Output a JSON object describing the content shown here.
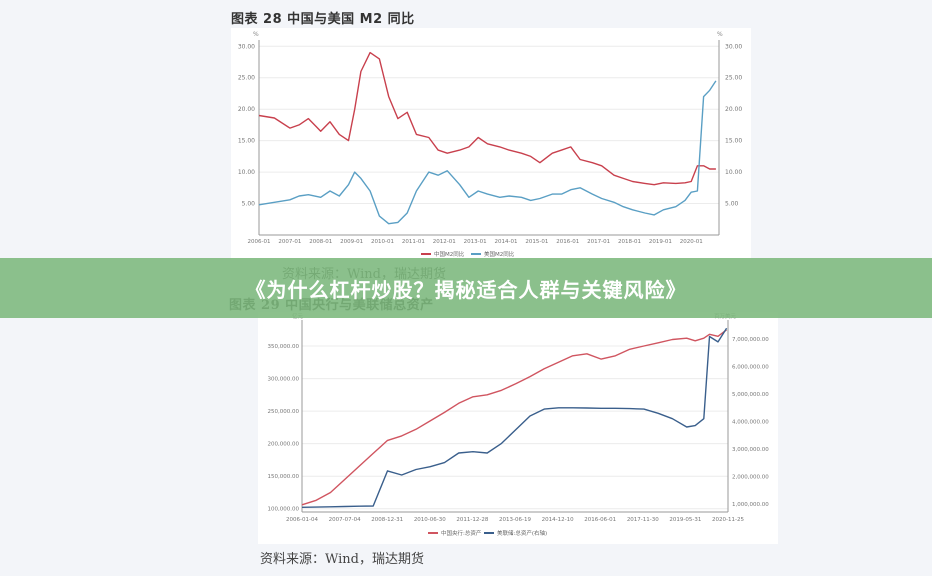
{
  "banner": {
    "title": "《为什么杠杆炒股？揭秘适合人群与关键风险》"
  },
  "figure1": {
    "caption": "图表 28 中国与美国 M2 同比",
    "source": "资料来源：Wind，瑞达期货"
  },
  "figure2": {
    "caption": "图表 29 中国央行与美联储总资产",
    "source": "资料来源：Wind，瑞达期货"
  },
  "chart_data": [
    {
      "type": "line",
      "title": "图表 28 中国与美国 M2 同比",
      "ylabel_left": "%",
      "ylabel_right": "%",
      "ylim": [
        0,
        31
      ],
      "yticks": [
        "5.00",
        "10.00",
        "15.00",
        "20.00",
        "25.00",
        "30.00"
      ],
      "xticks": [
        "2006-01",
        "2007-01",
        "2008-01",
        "2009-01",
        "2010-01",
        "2011-01",
        "2012-01",
        "2013-01",
        "2014-01",
        "2015-01",
        "2016-01",
        "2017-01",
        "2018-01",
        "2019-01",
        "2020-01"
      ],
      "grid": true,
      "legend_position": "bottom",
      "x": [
        2006.0,
        2006.5,
        2007.0,
        2007.3,
        2007.6,
        2008.0,
        2008.3,
        2008.6,
        2008.9,
        2009.1,
        2009.3,
        2009.6,
        2009.9,
        2010.2,
        2010.5,
        2010.8,
        2011.1,
        2011.5,
        2011.8,
        2012.1,
        2012.5,
        2012.8,
        2013.1,
        2013.4,
        2013.8,
        2014.1,
        2014.5,
        2014.8,
        2015.1,
        2015.5,
        2015.8,
        2016.1,
        2016.4,
        2016.8,
        2017.1,
        2017.5,
        2017.8,
        2018.1,
        2018.5,
        2018.8,
        2019.1,
        2019.5,
        2019.8,
        2020.0,
        2020.2,
        2020.4,
        2020.6,
        2020.8
      ],
      "series": [
        {
          "name": "中国M2同比",
          "color": "#c8404d",
          "axis": "left",
          "values": [
            19.0,
            18.6,
            17.0,
            17.5,
            18.5,
            16.5,
            18.0,
            16.0,
            15.0,
            20.0,
            26.0,
            29.0,
            28.0,
            22.0,
            18.5,
            19.5,
            16.0,
            15.5,
            13.5,
            13.0,
            13.5,
            14.0,
            15.5,
            14.5,
            14.0,
            13.5,
            13.0,
            12.5,
            11.5,
            13.0,
            13.5,
            14.0,
            12.0,
            11.5,
            11.0,
            9.5,
            9.0,
            8.5,
            8.2,
            8.0,
            8.3,
            8.2,
            8.3,
            8.5,
            11.0,
            11.0,
            10.5,
            10.5
          ]
        },
        {
          "name": "美国M2同比",
          "color": "#5a9fc4",
          "axis": "right",
          "values": [
            4.8,
            5.2,
            5.6,
            6.2,
            6.4,
            6.0,
            7.0,
            6.2,
            8.0,
            10.0,
            9.0,
            7.0,
            3.0,
            1.8,
            2.0,
            3.5,
            7.0,
            10.0,
            9.5,
            10.2,
            8.0,
            6.0,
            7.0,
            6.5,
            6.0,
            6.2,
            6.0,
            5.5,
            5.8,
            6.5,
            6.5,
            7.2,
            7.5,
            6.5,
            5.8,
            5.2,
            4.5,
            4.0,
            3.5,
            3.2,
            4.0,
            4.5,
            5.5,
            6.8,
            7.0,
            22.0,
            23.0,
            24.5
          ]
        }
      ]
    },
    {
      "type": "line",
      "title": "图表 29 中国央行与美联储总资产",
      "ylabel_left": "亿元",
      "ylabel_right": "百万美元",
      "ylim_left": [
        95000,
        390000
      ],
      "ylim_right": [
        700000,
        7700000
      ],
      "yticks_left": [
        "100,000.00",
        "150,000.00",
        "200,000.00",
        "250,000.00",
        "300,000.00",
        "350,000.00"
      ],
      "yticks_right": [
        "1,000,000.00",
        "2,000,000.00",
        "3,000,000.00",
        "4,000,000.00",
        "5,000,000.00",
        "6,000,000.00",
        "7,000,000.00"
      ],
      "xticks": [
        "2006-01-04",
        "2007-07-04",
        "2008-12-31",
        "2010-06-30",
        "2011-12-28",
        "2013-06-19",
        "2014-12-10",
        "2016-06-01",
        "2017-11-30",
        "2019-05-31",
        "2020-11-25"
      ],
      "grid": true,
      "legend_position": "bottom",
      "x": [
        2006.0,
        2006.5,
        2007.0,
        2007.5,
        2008.0,
        2008.5,
        2009.0,
        2009.5,
        2010.0,
        2010.5,
        2011.0,
        2011.5,
        2012.0,
        2012.5,
        2013.0,
        2013.5,
        2014.0,
        2014.5,
        2015.0,
        2015.5,
        2016.0,
        2016.5,
        2017.0,
        2017.5,
        2018.0,
        2018.5,
        2019.0,
        2019.5,
        2019.8,
        2020.1,
        2020.3,
        2020.6,
        2020.9
      ],
      "series": [
        {
          "name": "中国央行:总资产",
          "color": "#d05560",
          "axis": "left",
          "values": [
            106000,
            113000,
            125000,
            145000,
            165000,
            185000,
            205000,
            212000,
            222000,
            235000,
            248000,
            262000,
            272000,
            275000,
            282000,
            292000,
            303000,
            315000,
            325000,
            335000,
            338000,
            330000,
            335000,
            345000,
            350000,
            355000,
            360000,
            362000,
            358000,
            362000,
            368000,
            365000,
            375000
          ]
        },
        {
          "name": "美联储:总资产(右轴)",
          "color": "#3a5f8c",
          "axis": "right",
          "values": [
            870000,
            880000,
            890000,
            900000,
            910000,
            920000,
            2200000,
            2050000,
            2250000,
            2350000,
            2500000,
            2850000,
            2900000,
            2850000,
            3200000,
            3700000,
            4200000,
            4450000,
            4500000,
            4500000,
            4490000,
            4480000,
            4480000,
            4470000,
            4450000,
            4300000,
            4100000,
            3800000,
            3850000,
            4100000,
            7100000,
            6900000,
            7400000
          ]
        }
      ]
    }
  ]
}
